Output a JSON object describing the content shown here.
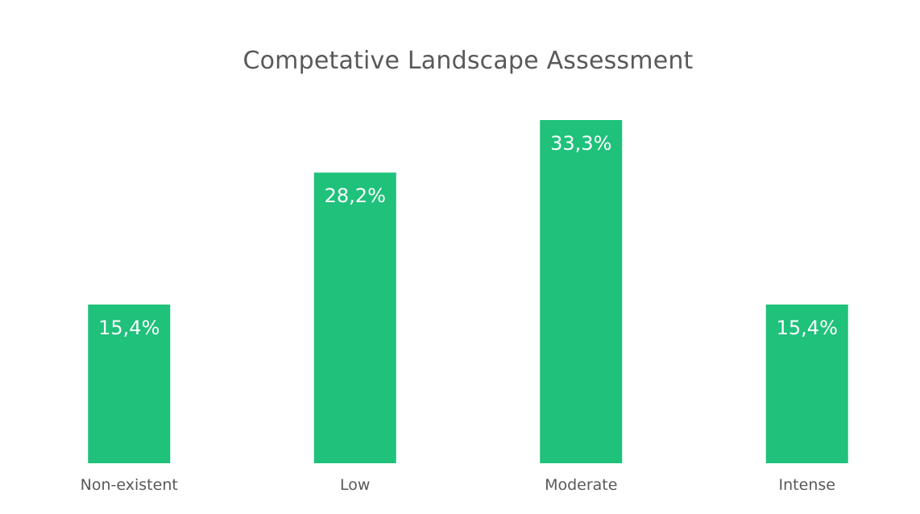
{
  "chart_data": {
    "type": "bar",
    "title": "Competative Landscape Assessment",
    "xlabel": "",
    "ylabel": "",
    "categories": [
      "Non-existent",
      "Low",
      "Moderate",
      "Intense"
    ],
    "values": [
      15.4,
      28.2,
      33.3,
      15.4
    ],
    "value_labels": [
      "15,4%",
      "28,2%",
      "33,3%",
      "15,4%"
    ],
    "ylim": [
      0,
      33.3
    ],
    "grid": false,
    "legend": "none",
    "bar_color": "#1fc17b",
    "value_label_color": "#ffffff",
    "text_color": "#595959"
  }
}
